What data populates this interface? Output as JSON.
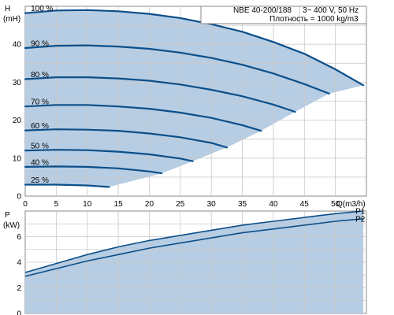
{
  "colors": {
    "curve": "#0b4f8a",
    "region": "#b7cde3",
    "grid": "#c9c9c9",
    "frame": "#8a8a8a"
  },
  "info": {
    "model": "NBE 40-200/188",
    "supply": "3~ 400 V, 50 Hz",
    "density": "Плотность = 1000 kg/m3"
  },
  "chart_data": [
    {
      "type": "line",
      "ylabel_lines": [
        "H",
        "(mH)"
      ],
      "xlabel": "Q(m3/h)",
      "xlim": [
        0,
        55
      ],
      "ylim": [
        0,
        50
      ],
      "x_ticks": [
        0,
        5,
        10,
        15,
        20,
        25,
        30,
        35,
        40,
        45,
        50
      ],
      "y_ticks": [
        0,
        10,
        20,
        30,
        40
      ],
      "grid": true,
      "series": [
        {
          "name": "100 %",
          "x": [
            0,
            5,
            10,
            15,
            20,
            25,
            30,
            35,
            40,
            45,
            50,
            54.5
          ],
          "y": [
            48.2,
            48.9,
            49.0,
            48.7,
            48.0,
            46.9,
            45.3,
            43.3,
            40.6,
            37.5,
            33.4,
            29.2
          ]
        },
        {
          "name": "90 %",
          "x": [
            0,
            5,
            10,
            15,
            20,
            25,
            30,
            35,
            40,
            45,
            49
          ],
          "y": [
            39.0,
            39.6,
            39.7,
            39.4,
            38.8,
            37.8,
            36.4,
            34.6,
            32.3,
            29.5,
            27.0
          ]
        },
        {
          "name": "80 %",
          "x": [
            0,
            5,
            10,
            15,
            20,
            25,
            30,
            35,
            40,
            43.5
          ],
          "y": [
            30.8,
            31.3,
            31.3,
            31.0,
            30.4,
            29.4,
            28.0,
            26.3,
            24.1,
            22.2
          ]
        },
        {
          "name": "70 %",
          "x": [
            0,
            5,
            10,
            15,
            20,
            25,
            30,
            35,
            38
          ],
          "y": [
            23.6,
            24.0,
            24.0,
            23.6,
            23.0,
            22.0,
            20.6,
            18.7,
            17.2
          ]
        },
        {
          "name": "60 %",
          "x": [
            0,
            5,
            10,
            15,
            20,
            25,
            30,
            32.5
          ],
          "y": [
            17.3,
            17.6,
            17.5,
            17.2,
            16.5,
            15.5,
            14.0,
            12.8
          ]
        },
        {
          "name": "50 %",
          "x": [
            0,
            5,
            10,
            15,
            20,
            25,
            27
          ],
          "y": [
            12.0,
            12.2,
            12.1,
            11.7,
            11.0,
            9.9,
            9.2
          ]
        },
        {
          "name": "40 %",
          "x": [
            0,
            5,
            10,
            15,
            20,
            22
          ],
          "y": [
            7.7,
            7.8,
            7.7,
            7.3,
            6.5,
            6.0
          ]
        },
        {
          "name": "25 %",
          "x": [
            0,
            5,
            10,
            13.5
          ],
          "y": [
            3.0,
            3.0,
            2.8,
            2.4
          ]
        }
      ]
    },
    {
      "type": "line",
      "ylabel_lines": [
        "P",
        "(kW)"
      ],
      "xlim": [
        0,
        55
      ],
      "ylim": [
        0,
        8
      ],
      "y_ticks": [
        0,
        2,
        4,
        6
      ],
      "grid": true,
      "series": [
        {
          "name": "P1",
          "x": [
            0,
            5,
            10,
            15,
            20,
            25,
            30,
            35,
            40,
            45,
            50,
            54.5
          ],
          "y": [
            3.2,
            3.9,
            4.6,
            5.2,
            5.7,
            6.1,
            6.5,
            6.9,
            7.2,
            7.5,
            7.8,
            8.0
          ]
        },
        {
          "name": "P2",
          "x": [
            0,
            5,
            10,
            15,
            20,
            25,
            30,
            35,
            40,
            45,
            50,
            54.5
          ],
          "y": [
            2.9,
            3.5,
            4.1,
            4.6,
            5.1,
            5.5,
            5.9,
            6.3,
            6.6,
            6.9,
            7.2,
            7.4
          ]
        }
      ]
    }
  ]
}
